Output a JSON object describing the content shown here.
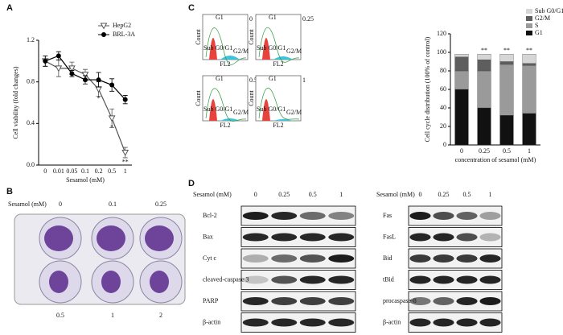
{
  "figure": {
    "panel_labels": [
      "A",
      "B",
      "C",
      "D"
    ]
  },
  "chart_data": [
    {
      "type": "line",
      "x_label": "Sesamol (mM)",
      "y_label": "Cell viability (fold changes)",
      "categories": [
        "0",
        "0.01",
        "0.05",
        "0.1",
        "0.2",
        "0.5",
        "1"
      ],
      "series": [
        {
          "name": "HepG2",
          "color": "#555555",
          "marker": "triangle-down",
          "values": [
            1.0,
            0.93,
            0.93,
            0.87,
            0.73,
            0.45,
            0.12
          ],
          "errors": [
            0.05,
            0.08,
            0.06,
            0.05,
            0.07,
            0.09,
            0.05
          ]
        },
        {
          "name": "BRL-3A",
          "color": "#000000",
          "marker": "circle",
          "values": [
            1.0,
            1.05,
            0.88,
            0.82,
            0.82,
            0.77,
            0.63
          ],
          "errors": [
            0.05,
            0.04,
            0.03,
            0.04,
            0.07,
            0.06,
            0.04
          ]
        }
      ],
      "annotations": [
        {
          "text": "*",
          "category": "0.2"
        },
        {
          "text": "*",
          "category": "0.5"
        },
        {
          "text": "**",
          "category": "1"
        }
      ],
      "ylim": [
        0,
        1.2
      ],
      "yticks": [
        {
          "value": 0,
          "label": "0.0"
        },
        0.4,
        0.8,
        1.2
      ]
    },
    {
      "type": "stacked-bar",
      "x_label": "concentration of sesamol (mM)",
      "y_label": "Cell cycle distribution (100% of control)",
      "categories": [
        "0",
        "0.25",
        "0.5",
        "1"
      ],
      "series": [
        {
          "name": "G1",
          "color": "#111111",
          "values": [
            60,
            40,
            32,
            34
          ]
        },
        {
          "name": "S",
          "color": "#9a9a9a",
          "values": [
            20,
            40,
            55,
            52
          ]
        },
        {
          "name": "G2/M",
          "color": "#5e5e5e",
          "values": [
            15,
            12,
            3,
            2
          ]
        },
        {
          "name": "Sub G0/G1",
          "color": "#d6d6d6",
          "values": [
            3,
            6,
            8,
            10
          ]
        }
      ],
      "annotations": [
        {
          "text": "**",
          "category": "0.25"
        },
        {
          "text": "**",
          "category": "0.5"
        },
        {
          "text": "**",
          "category": "1"
        }
      ],
      "ylim": [
        0,
        120
      ],
      "yticks": [
        0,
        20,
        40,
        60,
        80,
        100,
        120
      ]
    }
  ],
  "plate": {
    "axis_label": "Sesamol (mM)",
    "top_labels": [
      "0",
      "0.1",
      "0.25"
    ],
    "bottom_labels": [
      "0.5",
      "1",
      "2"
    ]
  },
  "flow": {
    "panels": [
      "0",
      "0.25",
      "0.5",
      "1"
    ],
    "y_label": "Count",
    "x_label": "FL2",
    "peaks": [
      "G1",
      "G2/M",
      "Sub G0/G1"
    ]
  },
  "blots": {
    "left": {
      "axis_label": "Sesamol (mM)",
      "lanes": [
        "0",
        "0.25",
        "0.5",
        "1"
      ],
      "proteins": [
        "Bcl-2",
        "Bax",
        "Cyt c",
        "cleaved-caspase 3",
        "PARP",
        "β-actin"
      ]
    },
    "right": {
      "axis_label": "Sesamol (mM)",
      "lanes": [
        "0",
        "0.25",
        "0.5",
        "1"
      ],
      "proteins": [
        "Fas",
        "FasL",
        "Bid",
        "tBid",
        "procaspase-8",
        "β-actin"
      ]
    }
  }
}
